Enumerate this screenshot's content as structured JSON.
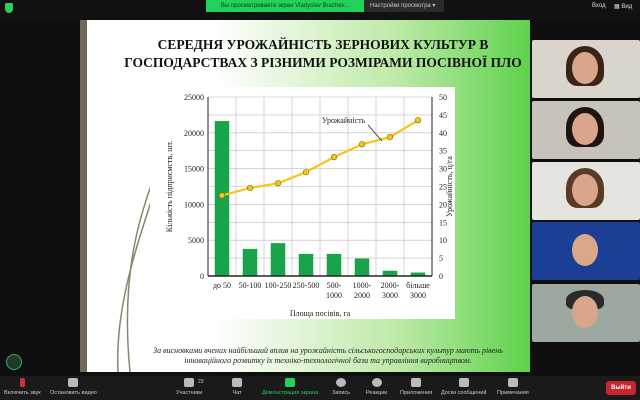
{
  "topbar": {
    "banner": "Вы просматриваете экран Vladyslav Brazhev...",
    "view_options": "Настройки просмотра",
    "login": "Вход",
    "view": "Вид"
  },
  "slide": {
    "title_line1": "СЕРЕДНЯ УРОЖАЙНІСТЬ ЗЕРНОВИХ КУЛЬТУР В",
    "title_line2": "ГОСПОДАРСТВАХ З РІЗНИМИ РОЗМІРАМИ ПОСІВНОЇ ПЛО",
    "caption_line1": "За висновками вчених найбільший вплив на урожайність сільськогосподарських культур мають рівень",
    "caption_line2": "інноваційного розвитку їх техніко-технологічної бази та управління виробництвом."
  },
  "chart_data": {
    "type": "bar+line",
    "categories": [
      [
        "до 50"
      ],
      [
        "50-100"
      ],
      [
        "100-250"
      ],
      [
        "250-500"
      ],
      [
        "500-",
        "1000"
      ],
      [
        "1000-",
        "2000"
      ],
      [
        "2000-",
        "3000"
      ],
      [
        "більше",
        "3000"
      ]
    ],
    "series": [
      {
        "type": "bar",
        "axis": "left",
        "values": [
          21600,
          3750,
          4550,
          3050,
          3050,
          2400,
          700,
          450
        ],
        "color": "#1aa34a"
      },
      {
        "type": "line",
        "axis": "right",
        "name": "Урожайність",
        "values": [
          22.5,
          24.6,
          25.9,
          29.0,
          33.2,
          36.8,
          38.8,
          43.5
        ],
        "color": "#f5c518"
      }
    ],
    "xlabel": "Площа посівів, га",
    "ylabel_left": "Кількість підприємств, шт.",
    "ylabel_right": "Урожайність, ц/га",
    "ylim_left": [
      0,
      25000
    ],
    "yticks_left": [
      0,
      5000,
      10000,
      15000,
      20000,
      25000
    ],
    "ylim_right": [
      0,
      50
    ],
    "yticks_right": [
      0,
      5,
      10,
      15,
      20,
      25,
      30,
      35,
      40,
      45,
      50
    ],
    "grid": true
  },
  "toolbar": {
    "mute": "Включить звук",
    "video": "Остановить видео",
    "participants": "Участники",
    "participants_count": "23",
    "chat": "Чат",
    "share": "Демонстрация экрана",
    "record": "Запись",
    "reactions": "Реакции",
    "apps": "Приложения",
    "whiteboards": "Доски сообщений",
    "notes": "Примечания",
    "leave": "Выйти"
  },
  "colors": {
    "share_active": "#22d15a",
    "leave": "#c9252c"
  }
}
